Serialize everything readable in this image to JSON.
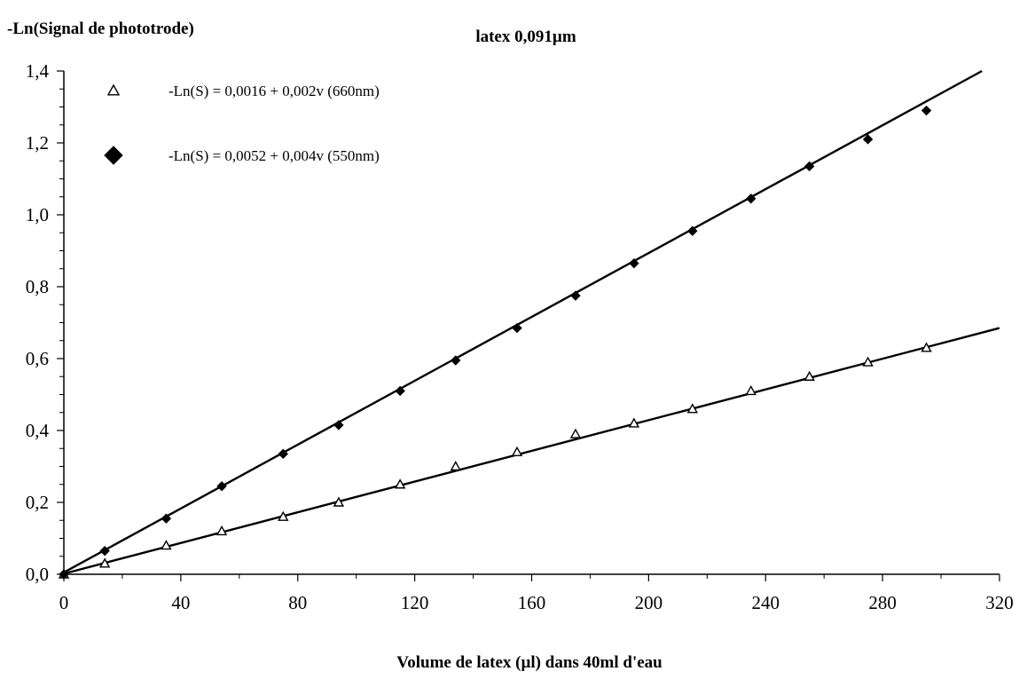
{
  "chart_data": {
    "type": "scatter",
    "title": "latex 0,091µm",
    "ylabel": "-Ln(Signal de phototrode)",
    "xlabel": "Volume de latex (µl) dans 40ml d'eau",
    "xlim": [
      0,
      320
    ],
    "ylim": [
      0,
      1.4
    ],
    "x_ticks": [
      0,
      40,
      80,
      120,
      160,
      200,
      240,
      280,
      320
    ],
    "x_tick_labels": [
      "0",
      "40",
      "80",
      "120",
      "160",
      "200",
      "240",
      "280",
      "320"
    ],
    "y_ticks": [
      0,
      0.2,
      0.4,
      0.6,
      0.8,
      1.0,
      1.2,
      1.4
    ],
    "y_tick_labels": [
      "0,0",
      "0,2",
      "0,4",
      "0,6",
      "0,8",
      "1,0",
      "1,2",
      "1,4"
    ],
    "grid": false,
    "legend_position": "top-left",
    "series": [
      {
        "name": "-Ln(S) = 0,0016 + 0,002v (660nm)",
        "marker": "triangle-open",
        "color": "#000000",
        "points": [
          [
            0,
            0.0
          ],
          [
            14,
            0.03
          ],
          [
            35,
            0.08
          ],
          [
            54,
            0.12
          ],
          [
            75,
            0.16
          ],
          [
            94,
            0.2
          ],
          [
            115,
            0.25
          ],
          [
            134,
            0.3
          ],
          [
            155,
            0.34
          ],
          [
            175,
            0.39
          ],
          [
            195,
            0.42
          ],
          [
            215,
            0.46
          ],
          [
            235,
            0.51
          ],
          [
            255,
            0.55
          ],
          [
            275,
            0.59
          ],
          [
            295,
            0.63
          ]
        ],
        "fit_line": {
          "x": [
            0,
            320
          ],
          "y": [
            0.0016,
            0.685
          ]
        }
      },
      {
        "name": "-Ln(S) = 0,0052 + 0,004v (550nm)",
        "marker": "diamond-filled",
        "color": "#000000",
        "points": [
          [
            0,
            0.0
          ],
          [
            14,
            0.065
          ],
          [
            35,
            0.155
          ],
          [
            54,
            0.245
          ],
          [
            75,
            0.335
          ],
          [
            94,
            0.415
          ],
          [
            115,
            0.51
          ],
          [
            134,
            0.595
          ],
          [
            155,
            0.685
          ],
          [
            175,
            0.775
          ],
          [
            195,
            0.865
          ],
          [
            215,
            0.955
          ],
          [
            235,
            1.045
          ],
          [
            255,
            1.135
          ],
          [
            275,
            1.21
          ],
          [
            295,
            1.29
          ]
        ],
        "fit_line": {
          "x": [
            0,
            314
          ],
          "y": [
            0.0052,
            1.4
          ]
        }
      }
    ]
  }
}
